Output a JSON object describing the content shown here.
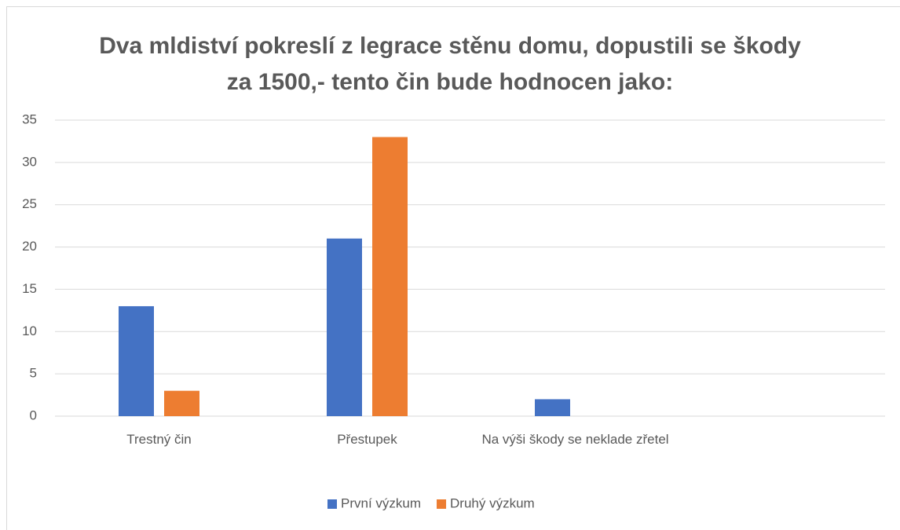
{
  "chart_data": {
    "type": "bar",
    "title": "Dva mldiství pokreslí z legrace stěnu domu, dopustili se škody za 1500,- tento čin bude hodnocen jako:",
    "categories": [
      "Trestný čin",
      "Přestupek",
      "Na výši škody se neklade zřetel",
      null
    ],
    "series": [
      {
        "name": "První výzkum",
        "color": "#4472c4",
        "values": [
          13,
          21,
          2,
          null
        ]
      },
      {
        "name": "Druhý výzkum",
        "color": "#ed7d31",
        "values": [
          3,
          33,
          0,
          null
        ]
      }
    ],
    "ylim": [
      0,
      35
    ],
    "yticks": [
      0,
      5,
      10,
      15,
      20,
      25,
      30,
      35
    ],
    "grid": true,
    "legend": "bottom"
  }
}
